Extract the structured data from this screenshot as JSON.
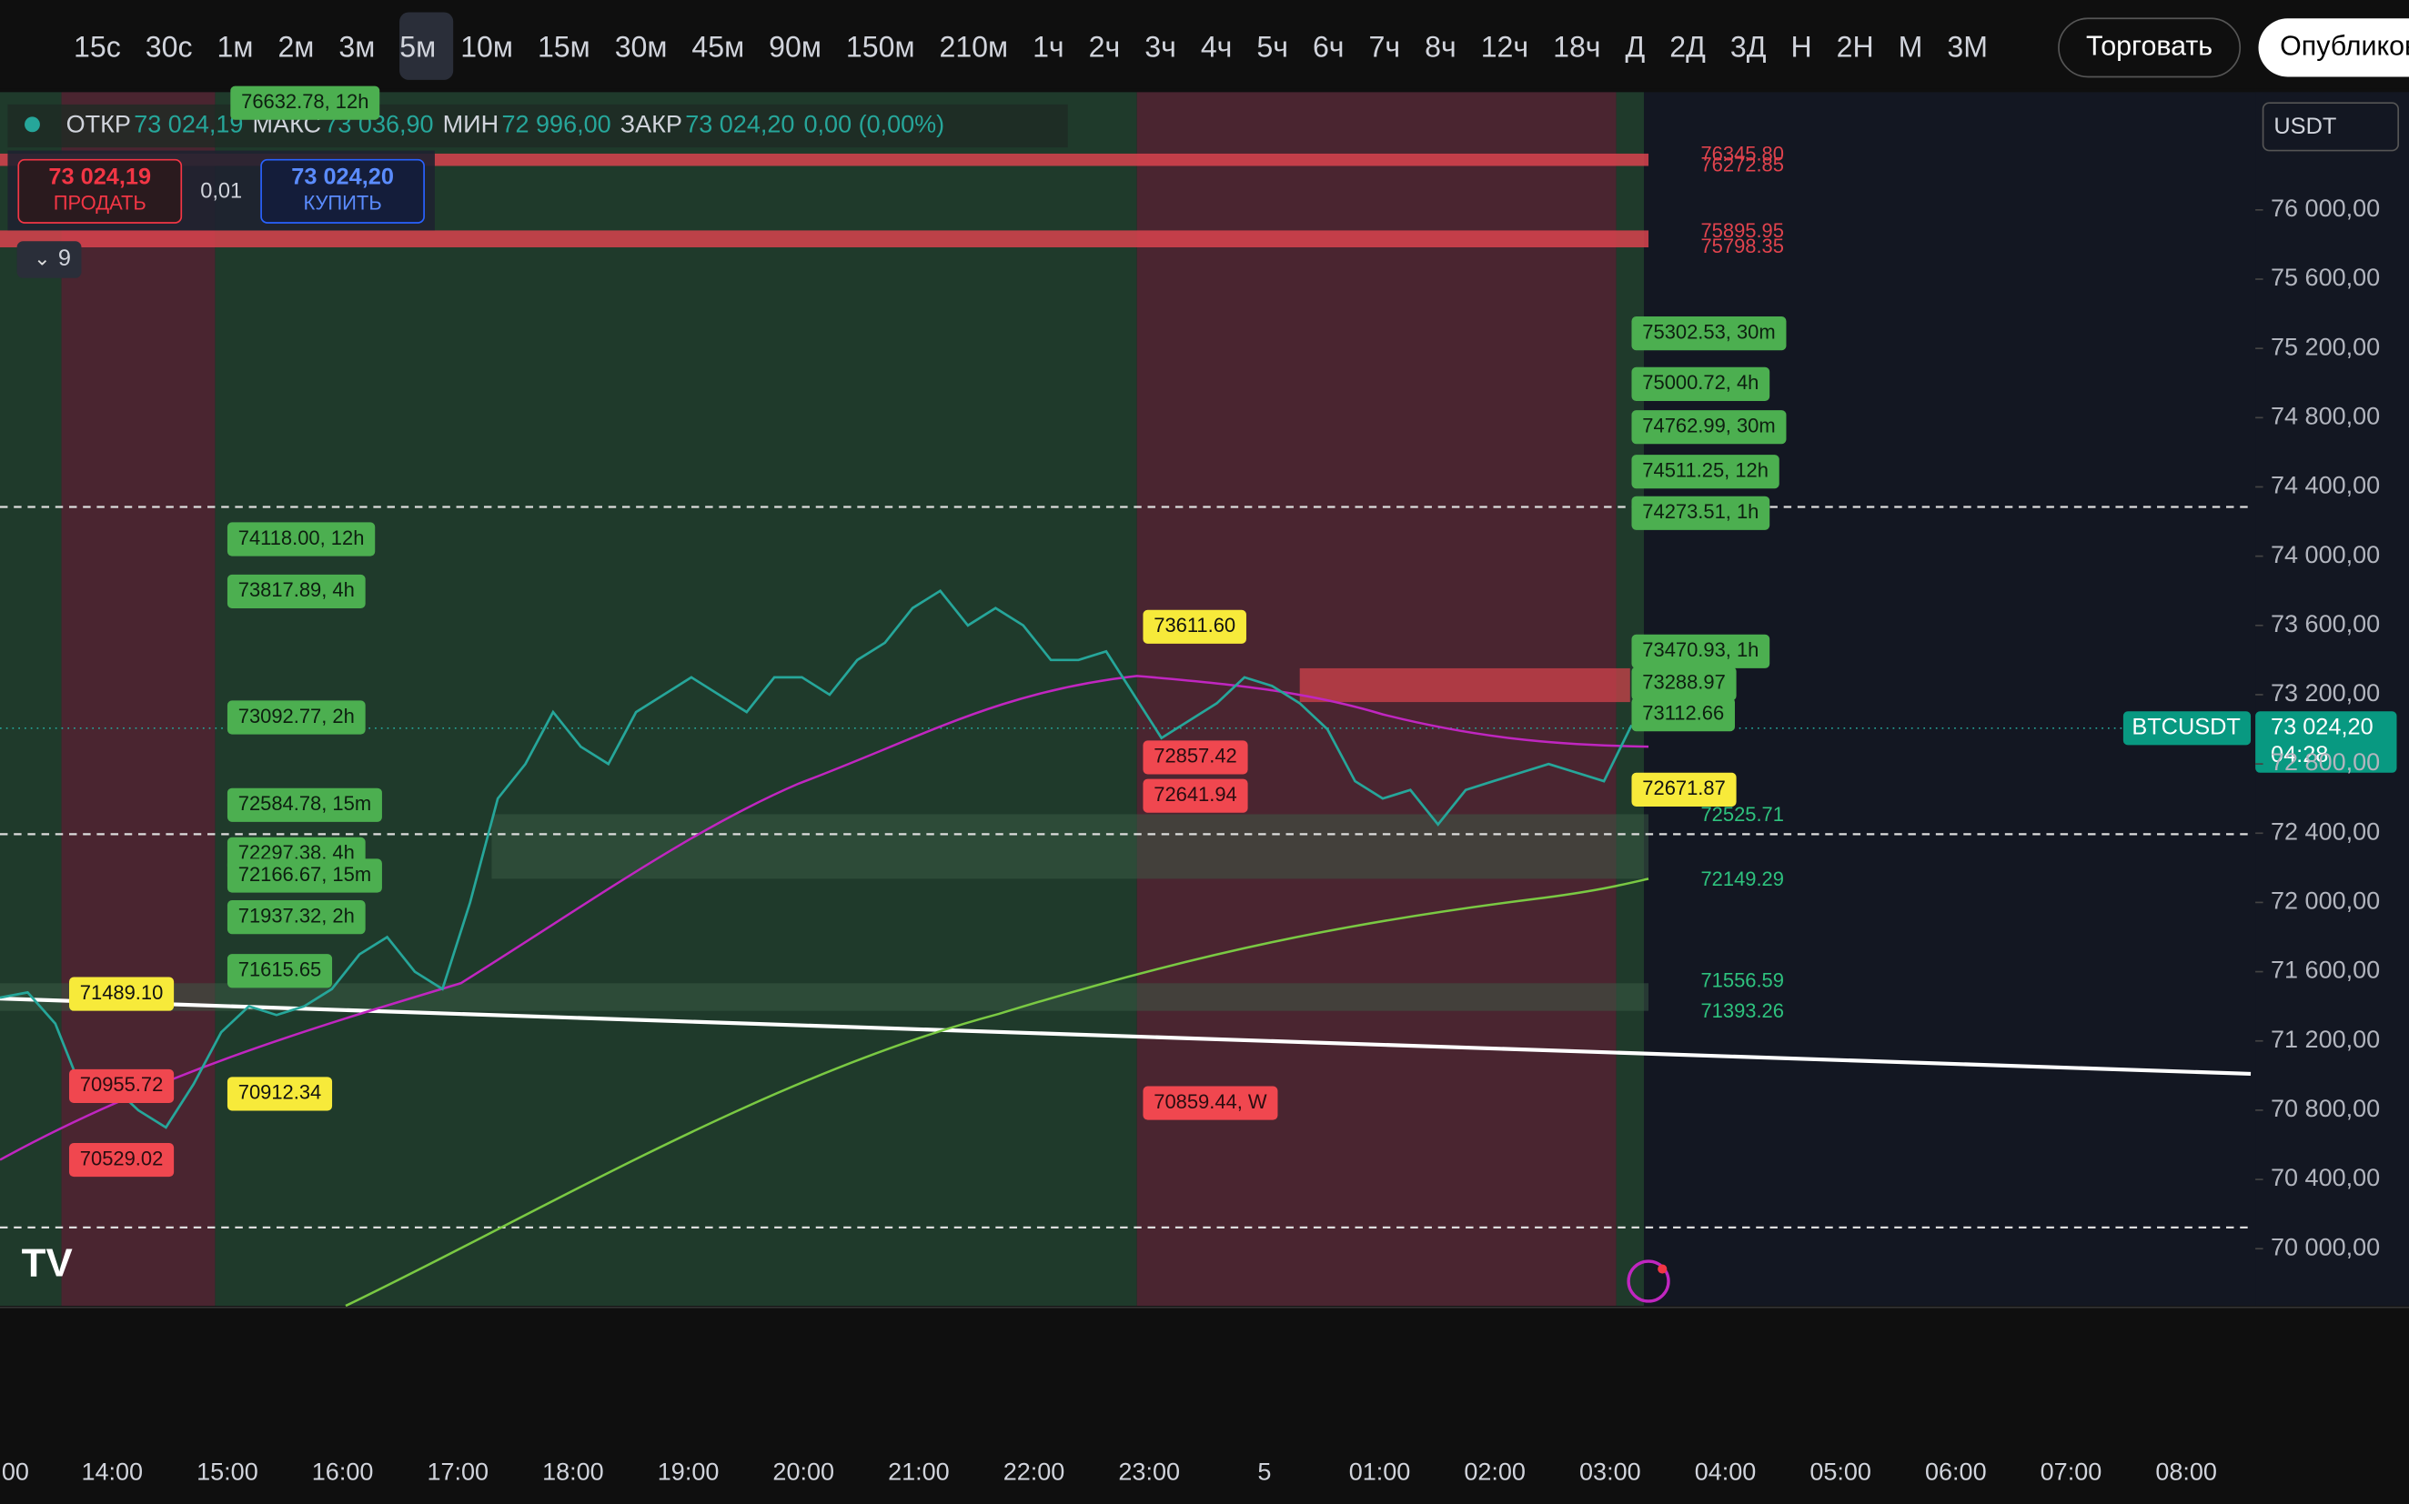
{
  "toolbar": {
    "intervals": [
      "15с",
      "30с",
      "1м",
      "2м",
      "3м",
      "5м",
      "10м",
      "15м",
      "30м",
      "45м",
      "90м",
      "150м",
      "210м",
      "1ч",
      "2ч",
      "3ч",
      "4ч",
      "5ч",
      "6ч",
      "7ч",
      "8ч",
      "12ч",
      "18ч",
      "Д",
      "2Д",
      "3Д",
      "Н",
      "2Н",
      "М",
      "3М"
    ],
    "buttons": [
      "Торговать",
      "Опубликовать"
    ]
  },
  "legend": {
    "open_label": "ОТКР",
    "open": "73 024,19",
    "high_label": "МАКС",
    "high": "73 036,90",
    "low_label": "МИН",
    "low": "72 996,00",
    "close_label": "ЗАКР",
    "close": "73 024,20",
    "change": "0,00 (0,00%)"
  },
  "order_panel": {
    "sell_price": "73 024,19",
    "sell_label": "ПРОДАТЬ",
    "quantity": "0,01",
    "buy_price": "73 024,20",
    "buy_label": "КУПИТЬ",
    "indicator_count": "9"
  },
  "currency": "USDT",
  "symbol_tag": "BTCUSDT",
  "price_tag": "73 024,20",
  "countdown": "04:28",
  "time_axis": [
    "00",
    "14:00",
    "15:00",
    "16:00",
    "17:00",
    "18:00",
    "19:00",
    "20:00",
    "21:00",
    "22:00",
    "23:00",
    "5",
    "01:00",
    "02:00",
    "03:00",
    "04:00",
    "05:00",
    "06:00",
    "07:00",
    "08:00"
  ],
  "levels": [
    {
      "label": "76632.78, 12h",
      "style": "green"
    },
    {
      "label": "76345.80",
      "style": "red-text"
    },
    {
      "label": "76272.85",
      "style": "red-text"
    },
    {
      "label": "75895.95",
      "style": "red-text"
    },
    {
      "label": "75798.35",
      "style": "red-text"
    },
    {
      "label": "75302.53, 30m",
      "style": "green"
    },
    {
      "label": "75000.72, 4h",
      "style": "green"
    },
    {
      "label": "74762.99, 30m",
      "style": "green"
    },
    {
      "label": "74511.25, 12h",
      "style": "green"
    },
    {
      "label": "74273.51, 1h",
      "style": "green"
    },
    {
      "label": "73470.93, 1h",
      "style": "green"
    },
    {
      "label": "73288.97",
      "style": "green"
    },
    {
      "label": "73112.66",
      "style": "green"
    },
    {
      "label": "72671.87",
      "style": "yellow"
    },
    {
      "label": "72525.71",
      "style": "green-text"
    },
    {
      "label": "72149.29",
      "style": "green-text"
    },
    {
      "label": "71556.59",
      "style": "green-text"
    },
    {
      "label": "71393.26",
      "style": "green-text"
    },
    {
      "label": "74118.00, 12h",
      "style": "green"
    },
    {
      "label": "73817.89, 4h",
      "style": "green"
    },
    {
      "label": "73092.77, 2h",
      "style": "green"
    },
    {
      "label": "72584.78, 15m",
      "style": "green"
    },
    {
      "label": "72297.38, 4h",
      "style": "green"
    },
    {
      "label": "72166.67, 15m",
      "style": "green"
    },
    {
      "label": "71937.32, 2h",
      "style": "green"
    },
    {
      "label": "71615.65",
      "style": "green"
    },
    {
      "label": "71489.10",
      "style": "yellow"
    },
    {
      "label": "70955.72",
      "style": "red"
    },
    {
      "label": "70529.02",
      "style": "red"
    },
    {
      "label": "70912.34",
      "style": "yellow"
    },
    {
      "label": "73611.60",
      "style": "yellow"
    },
    {
      "label": "72857.42",
      "style": "red"
    },
    {
      "label": "72641.94",
      "style": "red"
    },
    {
      "label": "70859.44, W",
      "style": "red"
    }
  ],
  "chart_data": {
    "type": "line",
    "color": "#26a69a",
    "values": [
      71450,
      71480,
      71300,
      70900,
      70950,
      70800,
      70700,
      70950,
      71250,
      71400,
      71350,
      71400,
      71500,
      71700,
      71800,
      71600,
      71500,
      72000,
      72600,
      72800,
      73100,
      72900,
      72800,
      73100,
      73200,
      73300,
      73200,
      73100,
      73300,
      73300,
      73200,
      73400,
      73500,
      73700,
      73800,
      73600,
      73700,
      73600,
      73400,
      73400,
      73450,
      73200,
      72950,
      73050,
      73150,
      73300,
      73250,
      73150,
      73000,
      72700,
      72600,
      72650,
      72450,
      72650,
      72700,
      72750,
      72800,
      72750,
      72700,
      73024
    ],
    "ylim": [
      69670,
      76680
    ],
    "yticks": [
      {
        "value": 70000,
        "label": "70 000,00"
      },
      {
        "value": 70400,
        "label": "70 400,00"
      },
      {
        "value": 70800,
        "label": "70 800,00"
      },
      {
        "value": 71200,
        "label": "71 200,00"
      },
      {
        "value": 71600,
        "label": "71 600,00"
      },
      {
        "value": 72000,
        "label": "72 000,00"
      },
      {
        "value": 72400,
        "label": "72 400,00"
      },
      {
        "value": 72800,
        "label": "72 800,00"
      },
      {
        "value": 73200,
        "label": "73 200,00"
      },
      {
        "value": 73600,
        "label": "73 600,00"
      },
      {
        "value": 74000,
        "label": "74 000,00"
      },
      {
        "value": 74400,
        "label": "74 400,00"
      },
      {
        "value": 74800,
        "label": "74 800,00"
      },
      {
        "value": 75200,
        "label": "75 200,00"
      },
      {
        "value": 75600,
        "label": "75 600,00"
      },
      {
        "value": 76000,
        "label": "76 000,00"
      }
    ]
  }
}
